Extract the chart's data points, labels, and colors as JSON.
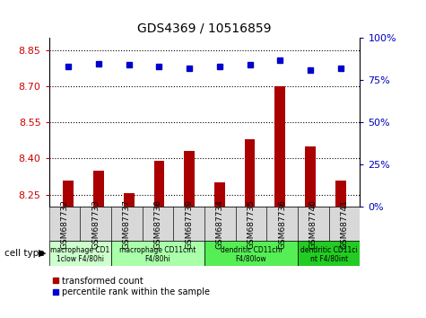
{
  "title": "GDS4369 / 10516859",
  "samples": [
    "GSM687732",
    "GSM687733",
    "GSM687737",
    "GSM687738",
    "GSM687739",
    "GSM687734",
    "GSM687735",
    "GSM687736",
    "GSM687740",
    "GSM687741"
  ],
  "transformed_counts": [
    8.31,
    8.35,
    8.255,
    8.39,
    8.43,
    8.3,
    8.48,
    8.7,
    8.45,
    8.31
  ],
  "percentile_ranks": [
    83,
    85,
    84,
    83,
    82,
    83,
    84,
    87,
    81,
    82
  ],
  "ylim_left": [
    8.2,
    8.9
  ],
  "ylim_right": [
    0,
    100
  ],
  "yticks_left": [
    8.25,
    8.4,
    8.55,
    8.7,
    8.85
  ],
  "yticks_right": [
    0,
    25,
    50,
    75,
    100
  ],
  "bar_color": "#aa0000",
  "dot_color": "#0000cc",
  "left_axis_color": "#cc0000",
  "right_axis_color": "#0000bb",
  "bg_color": "#ffffff",
  "plot_bg_color": "#ffffff",
  "group_colors": [
    "#ccffcc",
    "#aaffaa",
    "#55ee55",
    "#22cc22"
  ],
  "group_labels_line1": [
    "macrophage CD1",
    "macrophage CD11cint",
    "dendritic CD11chi",
    "dendritic CD11ci"
  ],
  "group_labels_line2": [
    "1clow F4/80hi",
    "F4/80hi",
    "F4/80low",
    "nt F4/80int"
  ],
  "group_starts": [
    0,
    2,
    5,
    8
  ],
  "group_ends": [
    2,
    5,
    8,
    10
  ]
}
